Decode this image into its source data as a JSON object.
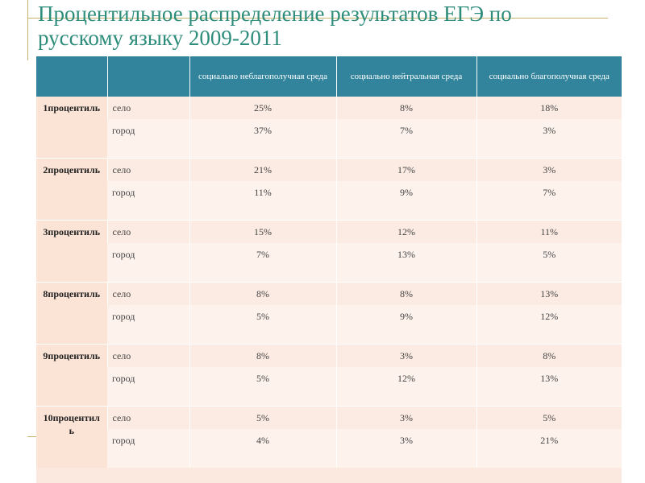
{
  "title": "Процентильное распределение результатов ЕГЭ по русскому языку  2009-2011",
  "table": {
    "headers": [
      "",
      "",
      "социально неблагополучная среда",
      "социально нейтральная среда",
      "социально благополучная среда"
    ],
    "groups": [
      {
        "label": "1процентиль",
        "rows": [
          {
            "sub": "село",
            "values": [
              "25%",
              "8%",
              "18%"
            ]
          },
          {
            "sub": "город",
            "values": [
              "37%",
              "7%",
              "3%"
            ]
          }
        ]
      },
      {
        "label": "2процентиль",
        "rows": [
          {
            "sub": "село",
            "values": [
              "21%",
              "17%",
              "3%"
            ]
          },
          {
            "sub": "город",
            "values": [
              "11%",
              "9%",
              "7%"
            ]
          }
        ]
      },
      {
        "label": "3процентиль",
        "rows": [
          {
            "sub": "село",
            "values": [
              "15%",
              "12%",
              "11%"
            ]
          },
          {
            "sub": "город",
            "values": [
              "7%",
              "13%",
              "5%"
            ]
          }
        ]
      },
      {
        "label": "8процентиль",
        "rows": [
          {
            "sub": "село",
            "values": [
              "8%",
              "8%",
              "13%"
            ]
          },
          {
            "sub": "город",
            "values": [
              "5%",
              "9%",
              "12%"
            ]
          }
        ]
      },
      {
        "label": "9процентиль",
        "rows": [
          {
            "sub": "село",
            "values": [
              "8%",
              "3%",
              "8%"
            ]
          },
          {
            "sub": "город",
            "values": [
              "5%",
              "12%",
              "13%"
            ]
          }
        ]
      },
      {
        "label": "10процентиль",
        "rows": [
          {
            "sub": "село",
            "values": [
              "5%",
              "3%",
              "5%"
            ]
          },
          {
            "sub": "город",
            "values": [
              "4%",
              "3%",
              "21%"
            ]
          }
        ]
      }
    ]
  }
}
